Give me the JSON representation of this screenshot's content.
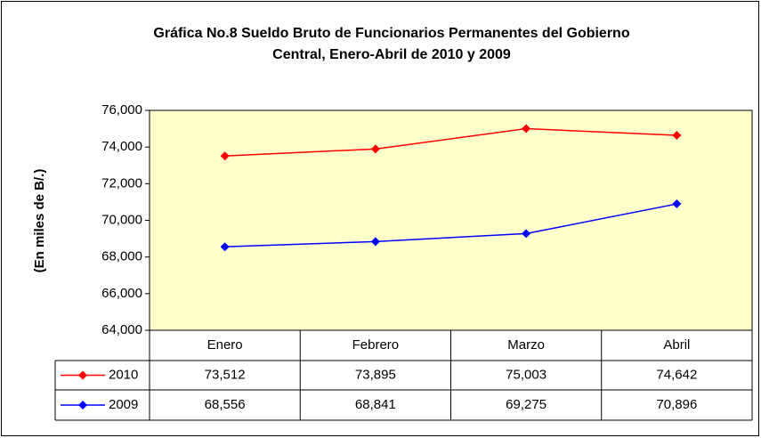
{
  "chart_data": {
    "type": "line",
    "title": [
      "Gráfica No.8 Sueldo Bruto de Funcionarios Permanentes del Gobierno",
      "Central, Enero-Abril de 2010 y 2009"
    ],
    "y_label": "(En miles de B/.)",
    "categories": [
      "Enero",
      "Febrero",
      "Marzo",
      "Abril"
    ],
    "series": [
      {
        "name": "2010",
        "color": "#ff0000",
        "values": [
          73512,
          73895,
          75003,
          74642
        ],
        "value_labels": [
          "73,512",
          "73,895",
          "75,003",
          "74,642"
        ]
      },
      {
        "name": "2009",
        "color": "#0000ff",
        "values": [
          68556,
          68841,
          69275,
          70896
        ],
        "value_labels": [
          "68,556",
          "68,841",
          "69,275",
          "70,896"
        ]
      }
    ],
    "ylim": [
      64000,
      76000
    ],
    "yticks": [
      {
        "value": 64000,
        "label": "64,000"
      },
      {
        "value": 66000,
        "label": "66,000"
      },
      {
        "value": 68000,
        "label": "68,000"
      },
      {
        "value": 70000,
        "label": "70,000"
      },
      {
        "value": 72000,
        "label": "72,000"
      },
      {
        "value": 74000,
        "label": "74,000"
      },
      {
        "value": 76000,
        "label": "76,000"
      }
    ],
    "plot_background": "#ffffcc"
  }
}
